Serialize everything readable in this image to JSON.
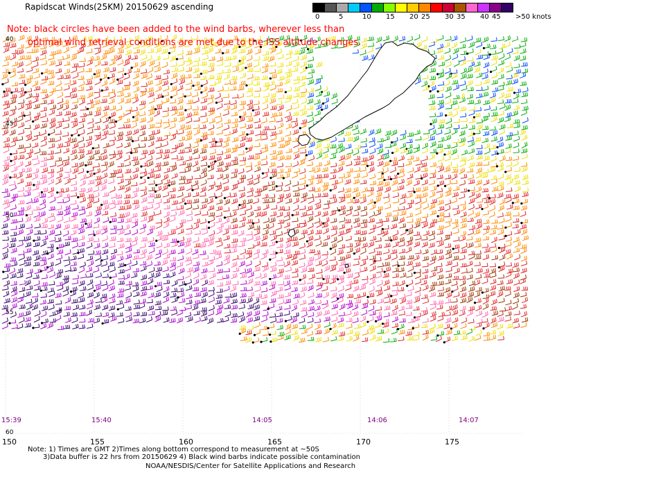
{
  "header": {
    "title": "Rapidscat Winds(25KM) 20150629 ascending",
    "note_line1": "Note: black circles have been added to the wind barbs, wherever less than",
    "note_line2": "optimal wind retrieval conditions are met due to the ISS altitude changes."
  },
  "wind_scale": {
    "colors": [
      "#000000",
      "#555555",
      "#aaaaaa",
      "#00ccff",
      "#0055ff",
      "#00aa00",
      "#88ff00",
      "#ffff00",
      "#ffcc00",
      "#ff8800",
      "#ff0000",
      "#cc0033",
      "#aa5500",
      "#ff66cc",
      "#cc33ff",
      "#880088",
      "#330066"
    ],
    "labels": [
      {
        "text": "0",
        "idx": 0
      },
      {
        "text": "5",
        "idx": 2
      },
      {
        "text": "10",
        "idx": 4
      },
      {
        "text": "15",
        "idx": 6
      },
      {
        "text": "20",
        "idx": 8
      },
      {
        "text": "25",
        "idx": 9
      },
      {
        "text": "30",
        "idx": 11
      },
      {
        "text": "35",
        "idx": 12
      },
      {
        "text": "40",
        "idx": 14
      },
      {
        "text": "45",
        "idx": 15
      },
      {
        "text": ">50 knots",
        "idx": 17
      }
    ]
  },
  "map": {
    "lat_labels": [
      "40",
      "45",
      "50",
      "55",
      "60"
    ],
    "lon_labels": [
      "150",
      "155",
      "160",
      "165",
      "170",
      "175"
    ],
    "time_labels": [
      "15:39",
      "15:40",
      "14:05",
      "14:06",
      "14:07"
    ],
    "band_colors": {
      "north_blue": "#0044ff",
      "north_green": "#00aa00",
      "yellow": "#eedd00",
      "orange": "#ff8800",
      "red": "#dd2222",
      "brown": "#993300",
      "pink": "#ff66aa",
      "purple": "#aa00cc",
      "dark": "#330066"
    }
  },
  "footer": {
    "line1": "Note: 1) Times are GMT 2)Times along bottom correspond to measurement at ~50S",
    "line2": "3)Data buffer is 22 hrs from 20150629 4) Black wind barbs indicate possible contamination",
    "line3": "NOAA/NESDIS/Center for Satellite Applications and Research"
  }
}
